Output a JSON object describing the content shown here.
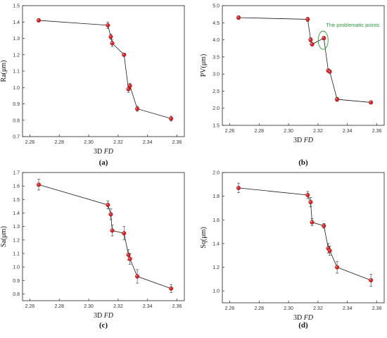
{
  "chart_data": [
    {
      "type": "scatter",
      "caption": "(a)",
      "xlabel_main": "3D ",
      "xlabel_italic": "FD",
      "ylabel": "Ra(μm)",
      "xlim": [
        2.255,
        2.365
      ],
      "ylim": [
        0.7,
        1.5
      ],
      "xticks": [
        "2.26",
        "2.28",
        "2.30",
        "2.32",
        "2.34",
        "2.36"
      ],
      "xtick_values": [
        2.26,
        2.28,
        2.3,
        2.32,
        2.34,
        2.36
      ],
      "yticks": [
        "0.7",
        "0.8",
        "0.9",
        "1.0",
        "1.1",
        "1.2",
        "1.3",
        "1.4",
        "1.5"
      ],
      "ytick_values": [
        0.7,
        0.8,
        0.9,
        1.0,
        1.1,
        1.2,
        1.3,
        1.4,
        1.5
      ],
      "x": [
        2.266,
        2.313,
        2.315,
        2.316,
        2.324,
        2.327,
        2.328,
        2.333,
        2.356
      ],
      "y": [
        1.41,
        1.38,
        1.31,
        1.27,
        1.2,
        0.99,
        1.01,
        0.87,
        0.81
      ],
      "err": [
        0.01,
        0.02,
        0.015,
        0.02,
        0.01,
        0.02,
        0.015,
        0.015,
        0.015
      ],
      "annotation": null
    },
    {
      "type": "scatter",
      "caption": "(b)",
      "xlabel_main": "3D ",
      "xlabel_italic": "FD",
      "ylabel": "PV(μm)",
      "xlim": [
        2.255,
        2.365
      ],
      "ylim": [
        1.5,
        5.0
      ],
      "xticks": [
        "2.26",
        "2.28",
        "2.30",
        "2.32",
        "2.34",
        "2.36"
      ],
      "xtick_values": [
        2.26,
        2.28,
        2.3,
        2.32,
        2.34,
        2.36
      ],
      "yticks": [
        "1.5",
        "2.0",
        "2.5",
        "3.0",
        "3.5",
        "4.0",
        "4.5",
        "5.0"
      ],
      "ytick_values": [
        1.5,
        2.0,
        2.5,
        3.0,
        3.5,
        4.0,
        4.5,
        5.0
      ],
      "x": [
        2.266,
        2.313,
        2.315,
        2.316,
        2.324,
        2.327,
        2.328,
        2.333,
        2.356
      ],
      "y": [
        4.65,
        4.6,
        4.0,
        3.87,
        4.05,
        3.1,
        3.07,
        2.26,
        2.17
      ],
      "err": [
        0.05,
        0.06,
        0.06,
        0.05,
        0.05,
        0.05,
        0.05,
        0.06,
        0.04
      ],
      "annotation": {
        "text": "The problematic points",
        "x": 2.324,
        "y": 4.03
      }
    },
    {
      "type": "scatter",
      "caption": "(c)",
      "xlabel_main": "3D ",
      "xlabel_italic": "FD",
      "ylabel": "Sa(μm)",
      "xlim": [
        2.255,
        2.365
      ],
      "ylim": [
        0.75,
        1.7
      ],
      "xticks": [
        "2.26",
        "2.28",
        "2.30",
        "2.32",
        "2.34",
        "2.36"
      ],
      "xtick_values": [
        2.26,
        2.28,
        2.3,
        2.32,
        2.34,
        2.36
      ],
      "yticks": [
        "0.8",
        "0.9",
        "1.0",
        "1.1",
        "1.2",
        "1.3",
        "1.4",
        "1.5",
        "1.6",
        "1.7"
      ],
      "ytick_values": [
        0.8,
        0.9,
        1.0,
        1.1,
        1.2,
        1.3,
        1.4,
        1.5,
        1.6,
        1.7
      ],
      "x": [
        2.266,
        2.313,
        2.315,
        2.316,
        2.324,
        2.327,
        2.328,
        2.333,
        2.356
      ],
      "y": [
        1.61,
        1.46,
        1.39,
        1.27,
        1.25,
        1.09,
        1.06,
        0.93,
        0.84
      ],
      "err": [
        0.04,
        0.03,
        0.04,
        0.04,
        0.05,
        0.04,
        0.04,
        0.05,
        0.03
      ],
      "annotation": null
    },
    {
      "type": "scatter",
      "caption": "(d)",
      "xlabel_main": "3D ",
      "xlabel_italic": "FD",
      "ylabel": "Sq(μm)",
      "xlim": [
        2.255,
        2.365
      ],
      "ylim": [
        0.9,
        2.0
      ],
      "xticks": [
        "2.26",
        "2.28",
        "2.30",
        "2.32",
        "2.34",
        "2.36"
      ],
      "xtick_values": [
        2.26,
        2.28,
        2.3,
        2.32,
        2.34,
        2.36
      ],
      "yticks": [
        "1.0",
        "1.2",
        "1.4",
        "1.6",
        "1.8",
        "2.0"
      ],
      "ytick_values": [
        1.0,
        1.2,
        1.4,
        1.6,
        1.8,
        2.0
      ],
      "x": [
        2.266,
        2.313,
        2.315,
        2.316,
        2.324,
        2.327,
        2.328,
        2.333,
        2.356
      ],
      "y": [
        1.87,
        1.81,
        1.75,
        1.58,
        1.55,
        1.36,
        1.34,
        1.2,
        1.09
      ],
      "err": [
        0.04,
        0.03,
        0.04,
        0.03,
        0.02,
        0.04,
        0.04,
        0.05,
        0.05
      ],
      "annotation": null
    }
  ],
  "colors": {
    "marker": "#dd1f1f",
    "line": "#1a1a1a",
    "annotation": "#2a9d3a"
  }
}
